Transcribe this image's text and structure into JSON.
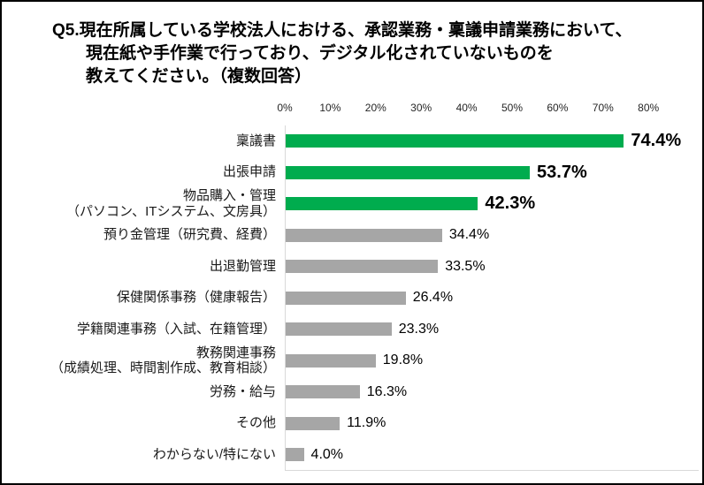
{
  "title": {
    "line1": "Q5.現在所属している学校法人における、承認業務・稟議申請業務において、",
    "line2": "現在紙や手作業で行っており、デジタル化されていないものを",
    "line3": "教えてください。（複数回答）"
  },
  "colors": {
    "highlight": "#00AC4E",
    "default": "#A6A6A6",
    "axis_line": "#D9D9D9",
    "frame": "#000000"
  },
  "chart_data": {
    "type": "bar",
    "orientation": "horizontal",
    "title": "Q5.現在所属している学校法人における、承認業務・稟議申請業務において、現在紙や手作業で行っており、デジタル化されていないものを教えてください。（複数回答）",
    "xlabel": "",
    "ylabel": "",
    "xlim": [
      0,
      90
    ],
    "x_ticks": [
      "0%",
      "10%",
      "20%",
      "30%",
      "40%",
      "50%",
      "60%",
      "70%",
      "80%"
    ],
    "grid": false,
    "legend": "none",
    "value_suffix": "%",
    "categories": [
      "稟議書",
      "出張申請",
      "物品購入・管理（パソコン、ITシステム、文房具）",
      "預り金管理（研究費、経費）",
      "出退勤管理",
      "保健関係事務（健康報告）",
      "学籍関連事務（入試、在籍管理）",
      "教務関連事務（成績処理、時間割作成、教育相談）",
      "労務・給与",
      "その他",
      "わからない/特にない"
    ],
    "values": [
      74.4,
      53.7,
      42.3,
      34.4,
      33.5,
      26.4,
      23.3,
      19.8,
      16.3,
      11.9,
      4.0
    ],
    "bars": [
      {
        "label": "稟議書",
        "label2": "",
        "value": 74.4,
        "display": "74.4%",
        "emphasis": true
      },
      {
        "label": "出張申請",
        "label2": "",
        "value": 53.7,
        "display": "53.7%",
        "emphasis": true
      },
      {
        "label": "物品購入・管理",
        "label2": "（パソコン、ITシステム、文房具）",
        "value": 42.3,
        "display": "42.3%",
        "emphasis": true
      },
      {
        "label": "預り金管理（研究費、経費）",
        "label2": "",
        "value": 34.4,
        "display": "34.4%",
        "emphasis": false
      },
      {
        "label": "出退勤管理",
        "label2": "",
        "value": 33.5,
        "display": "33.5%",
        "emphasis": false
      },
      {
        "label": "保健関係事務（健康報告）",
        "label2": "",
        "value": 26.4,
        "display": "26.4%",
        "emphasis": false
      },
      {
        "label": "学籍関連事務（入試、在籍管理）",
        "label2": "",
        "value": 23.3,
        "display": "23.3%",
        "emphasis": false
      },
      {
        "label": "教務関連事務",
        "label2": "（成績処理、時間割作成、教育相談）",
        "value": 19.8,
        "display": "19.8%",
        "emphasis": false
      },
      {
        "label": "労務・給与",
        "label2": "",
        "value": 16.3,
        "display": "16.3%",
        "emphasis": false
      },
      {
        "label": "その他",
        "label2": "",
        "value": 11.9,
        "display": "11.9%",
        "emphasis": false
      },
      {
        "label": "わからない/特にない",
        "label2": "",
        "value": 4.0,
        "display": "4.0%",
        "emphasis": false
      }
    ]
  }
}
